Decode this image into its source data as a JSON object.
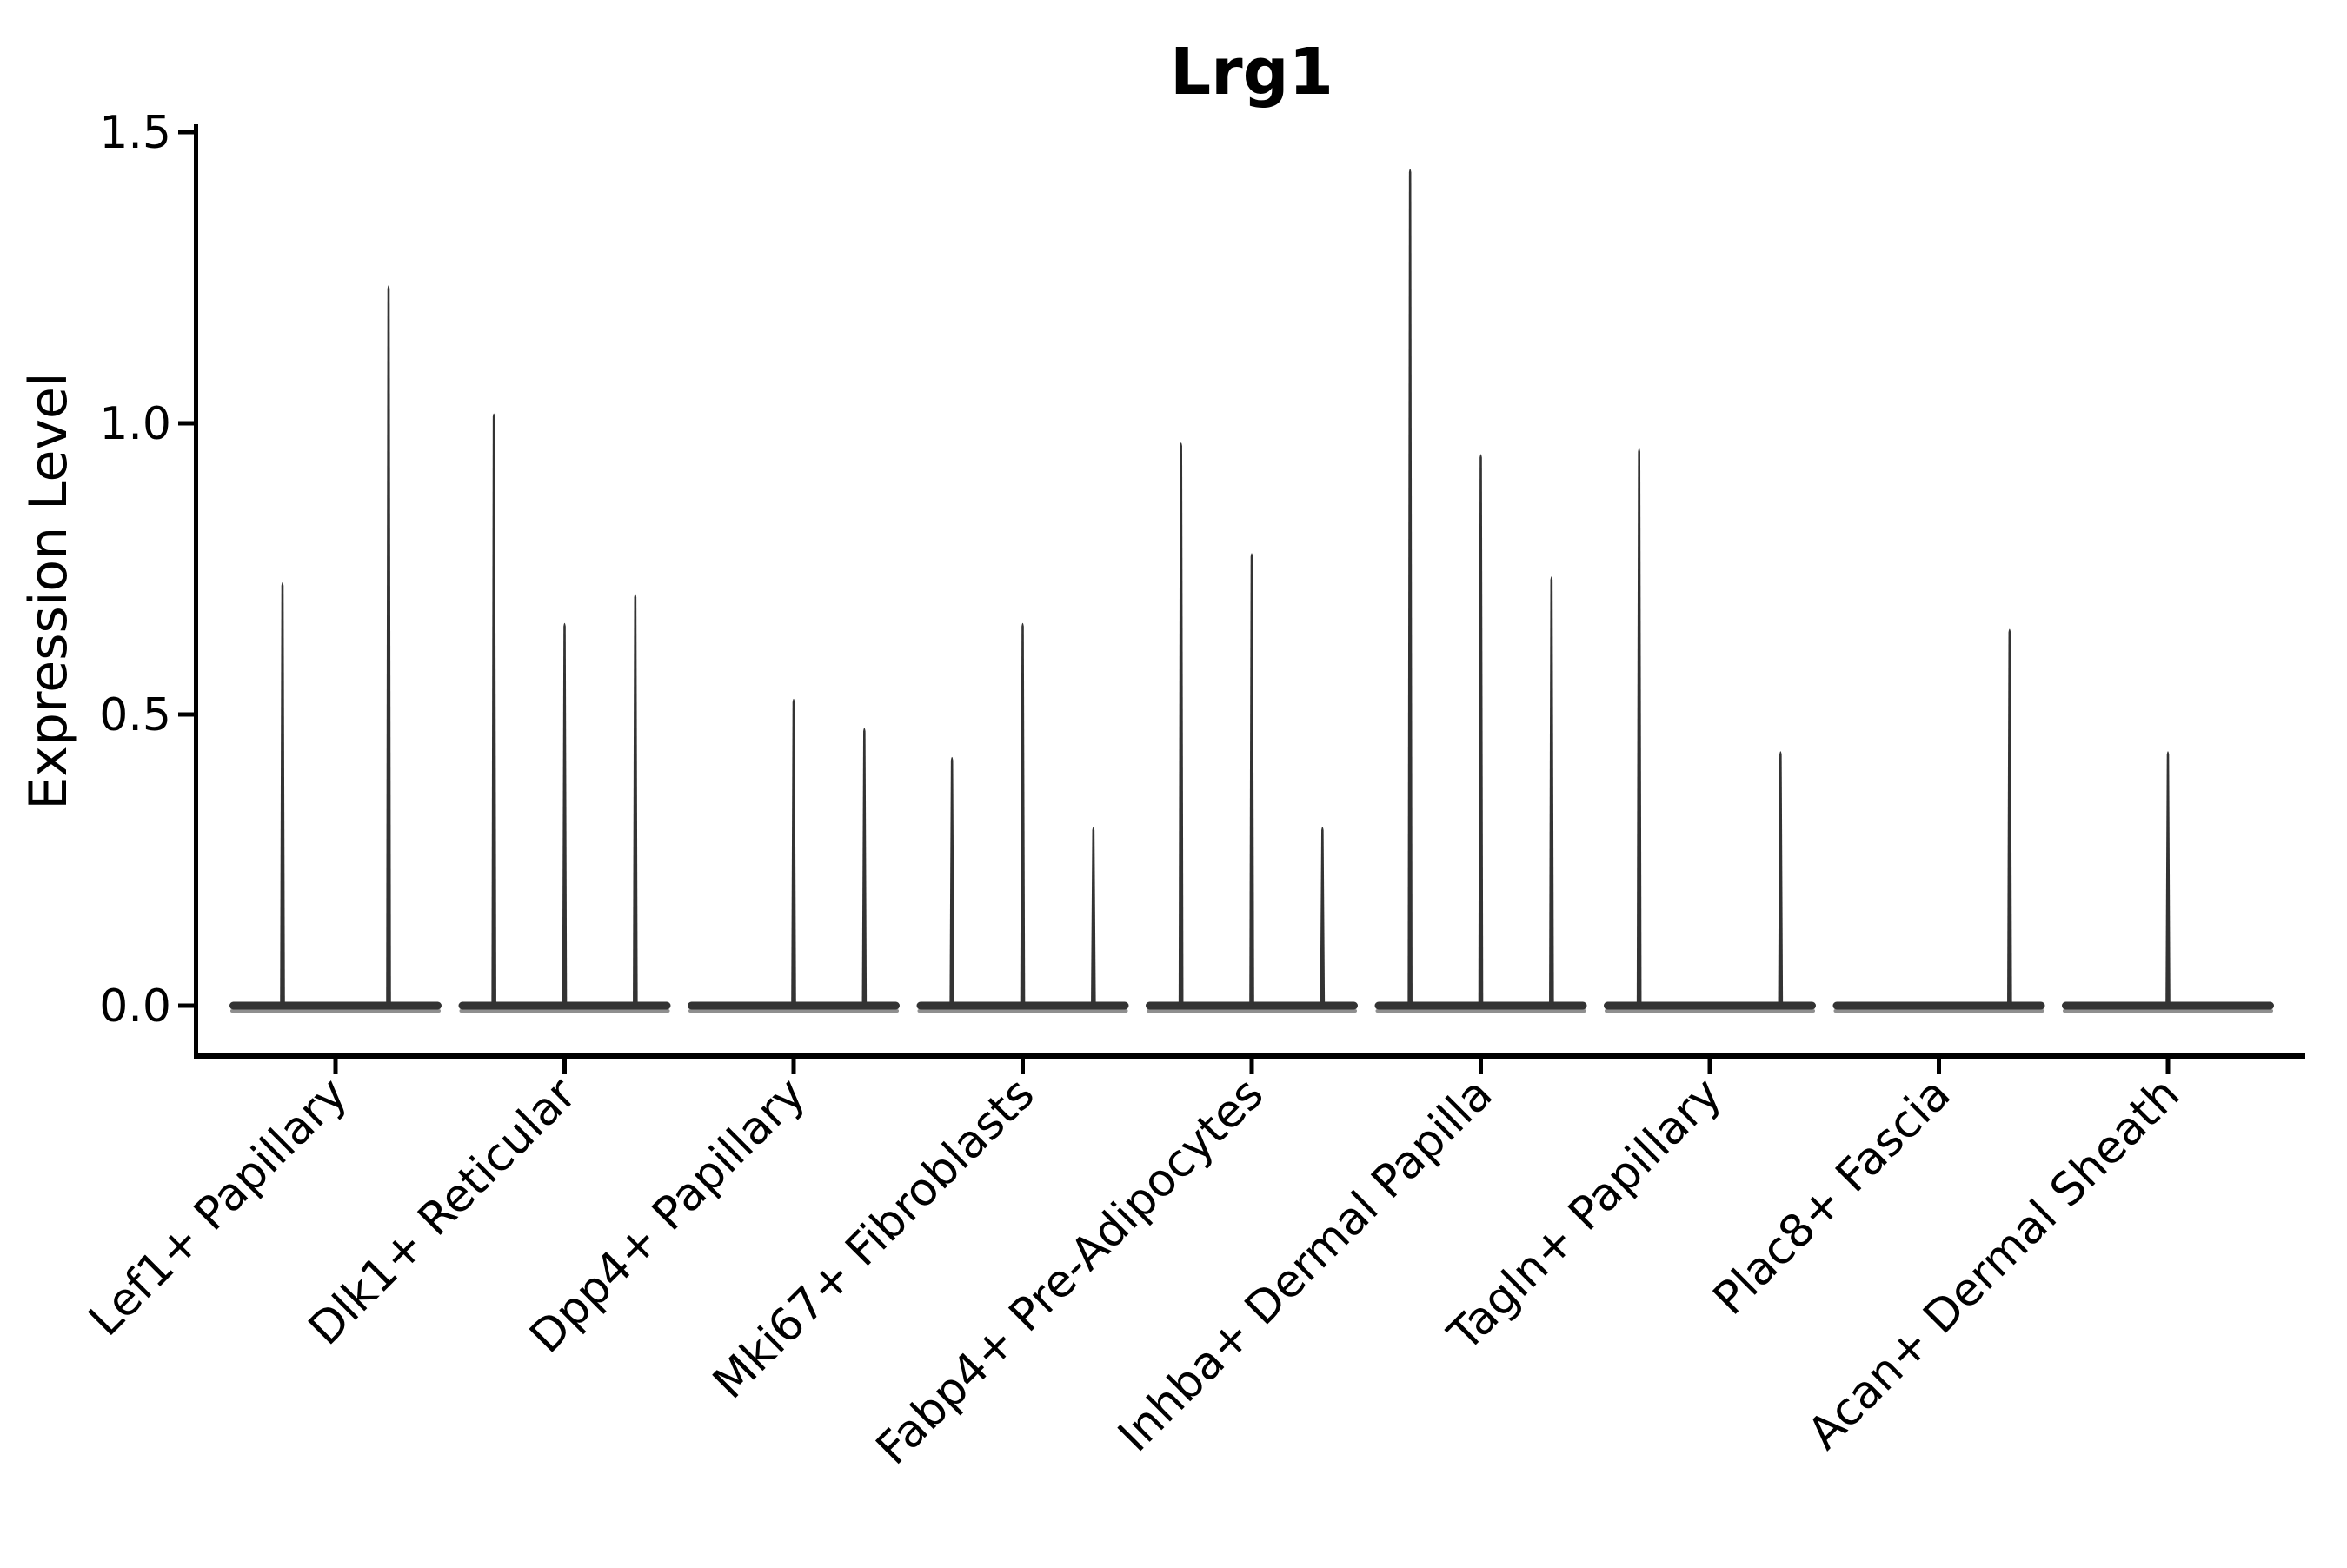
{
  "title": "Lrg1",
  "ylabel": "Expression Level",
  "chart_data": {
    "type": "violin",
    "title": "Lrg1",
    "xlabel": "",
    "ylabel": "Expression Level",
    "ylim": [
      -0.08,
      1.53
    ],
    "yticks": [
      0.0,
      0.5,
      1.0,
      1.5
    ],
    "ytick_labels": [
      "0.0",
      "0.5",
      "1.0",
      "1.5"
    ],
    "grid": false,
    "legend_position": "none",
    "x_tick_label_rotation_deg": 45,
    "categories": [
      "Lef1+ Papillary",
      "Dlk1+ Reticular",
      "Dpp4+ Papillary",
      "Mki67+ Fibroblasts",
      "Fabp4+ Pre-Adipocytes",
      "Inhba+ Dermal Papilla",
      "Tagln+ Papillary",
      "Plac8+ Fascia",
      "Acan+ Dermal Sheath"
    ],
    "description": "Violin plot of Lrg1 expression; most cells at 0 so each violin is a flat bar at 0 with a thin spike to its maximum expression value. Each category holds 2-3 sub-violins (slots).",
    "groups": [
      {
        "category": "Lef1+ Papillary",
        "n_violins": 2,
        "violins": [
          {
            "slot": 0,
            "max": 0.73
          },
          {
            "slot": 1,
            "max": 1.24
          }
        ]
      },
      {
        "category": "Dlk1+ Reticular",
        "n_violins": 3,
        "violins": [
          {
            "slot": 0,
            "max": 1.02
          },
          {
            "slot": 1,
            "max": 0.66
          },
          {
            "slot": 2,
            "max": 0.71
          }
        ]
      },
      {
        "category": "Dpp4+ Papillary",
        "n_violins": 3,
        "violins": [
          {
            "slot": 1,
            "max": 0.53
          },
          {
            "slot": 2,
            "max": 0.48
          }
        ]
      },
      {
        "category": "Mki67+ Fibroblasts",
        "n_violins": 3,
        "violins": [
          {
            "slot": 0,
            "max": 0.43
          },
          {
            "slot": 1,
            "max": 0.66
          },
          {
            "slot": 2,
            "max": 0.31
          }
        ]
      },
      {
        "category": "Fabp4+ Pre-Adipocytes",
        "n_violins": 3,
        "violins": [
          {
            "slot": 0,
            "max": 0.97
          },
          {
            "slot": 1,
            "max": 0.78
          },
          {
            "slot": 2,
            "max": 0.31
          }
        ]
      },
      {
        "category": "Inhba+ Dermal Papilla",
        "n_violins": 3,
        "violins": [
          {
            "slot": 0,
            "max": 1.44
          },
          {
            "slot": 1,
            "max": 0.95
          },
          {
            "slot": 2,
            "max": 0.74
          }
        ]
      },
      {
        "category": "Tagln+ Papillary",
        "n_violins": 3,
        "violins": [
          {
            "slot": 0,
            "max": 0.96
          },
          {
            "slot": 2,
            "max": 0.44
          }
        ]
      },
      {
        "category": "Plac8+ Fascia",
        "n_violins": 3,
        "violins": [
          {
            "slot": 2,
            "max": 0.65
          }
        ]
      },
      {
        "category": "Acan+ Dermal Sheath",
        "n_violins": 3,
        "violins": [
          {
            "slot": 1,
            "max": 0.44
          }
        ]
      }
    ],
    "colors": {
      "violin": "#333333",
      "violin_underside": "#8f8f8f",
      "axis": "#000000",
      "text": "#000000",
      "background": "#ffffff"
    }
  }
}
